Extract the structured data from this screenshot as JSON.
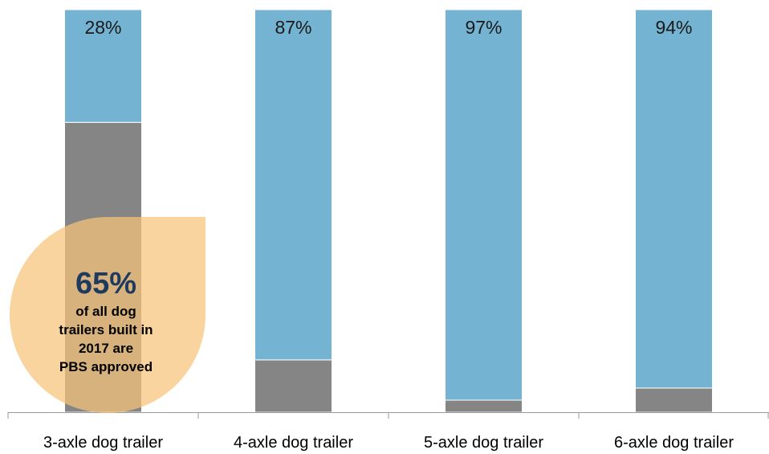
{
  "chart_data": {
    "type": "bar",
    "stacked": true,
    "categories": [
      "3-axle dog trailer",
      "4-axle dog trailer",
      "5-axle dog trailer",
      "6-axle dog trailer"
    ],
    "series": [
      {
        "values": [
          72,
          13,
          3,
          6
        ],
        "color": "#858585"
      },
      {
        "values": [
          28,
          87,
          97,
          94
        ],
        "color": "#74b4d2"
      }
    ],
    "data_labels": [
      "28%",
      "87%",
      "97%",
      "94%"
    ],
    "ylim": [
      0,
      100
    ],
    "grid": false,
    "legend": "none"
  },
  "callout": {
    "headline": "65%",
    "lines": [
      "of all dog",
      "trailers built in",
      "2017 are",
      "PBS approved"
    ],
    "color": "#f8c478"
  }
}
